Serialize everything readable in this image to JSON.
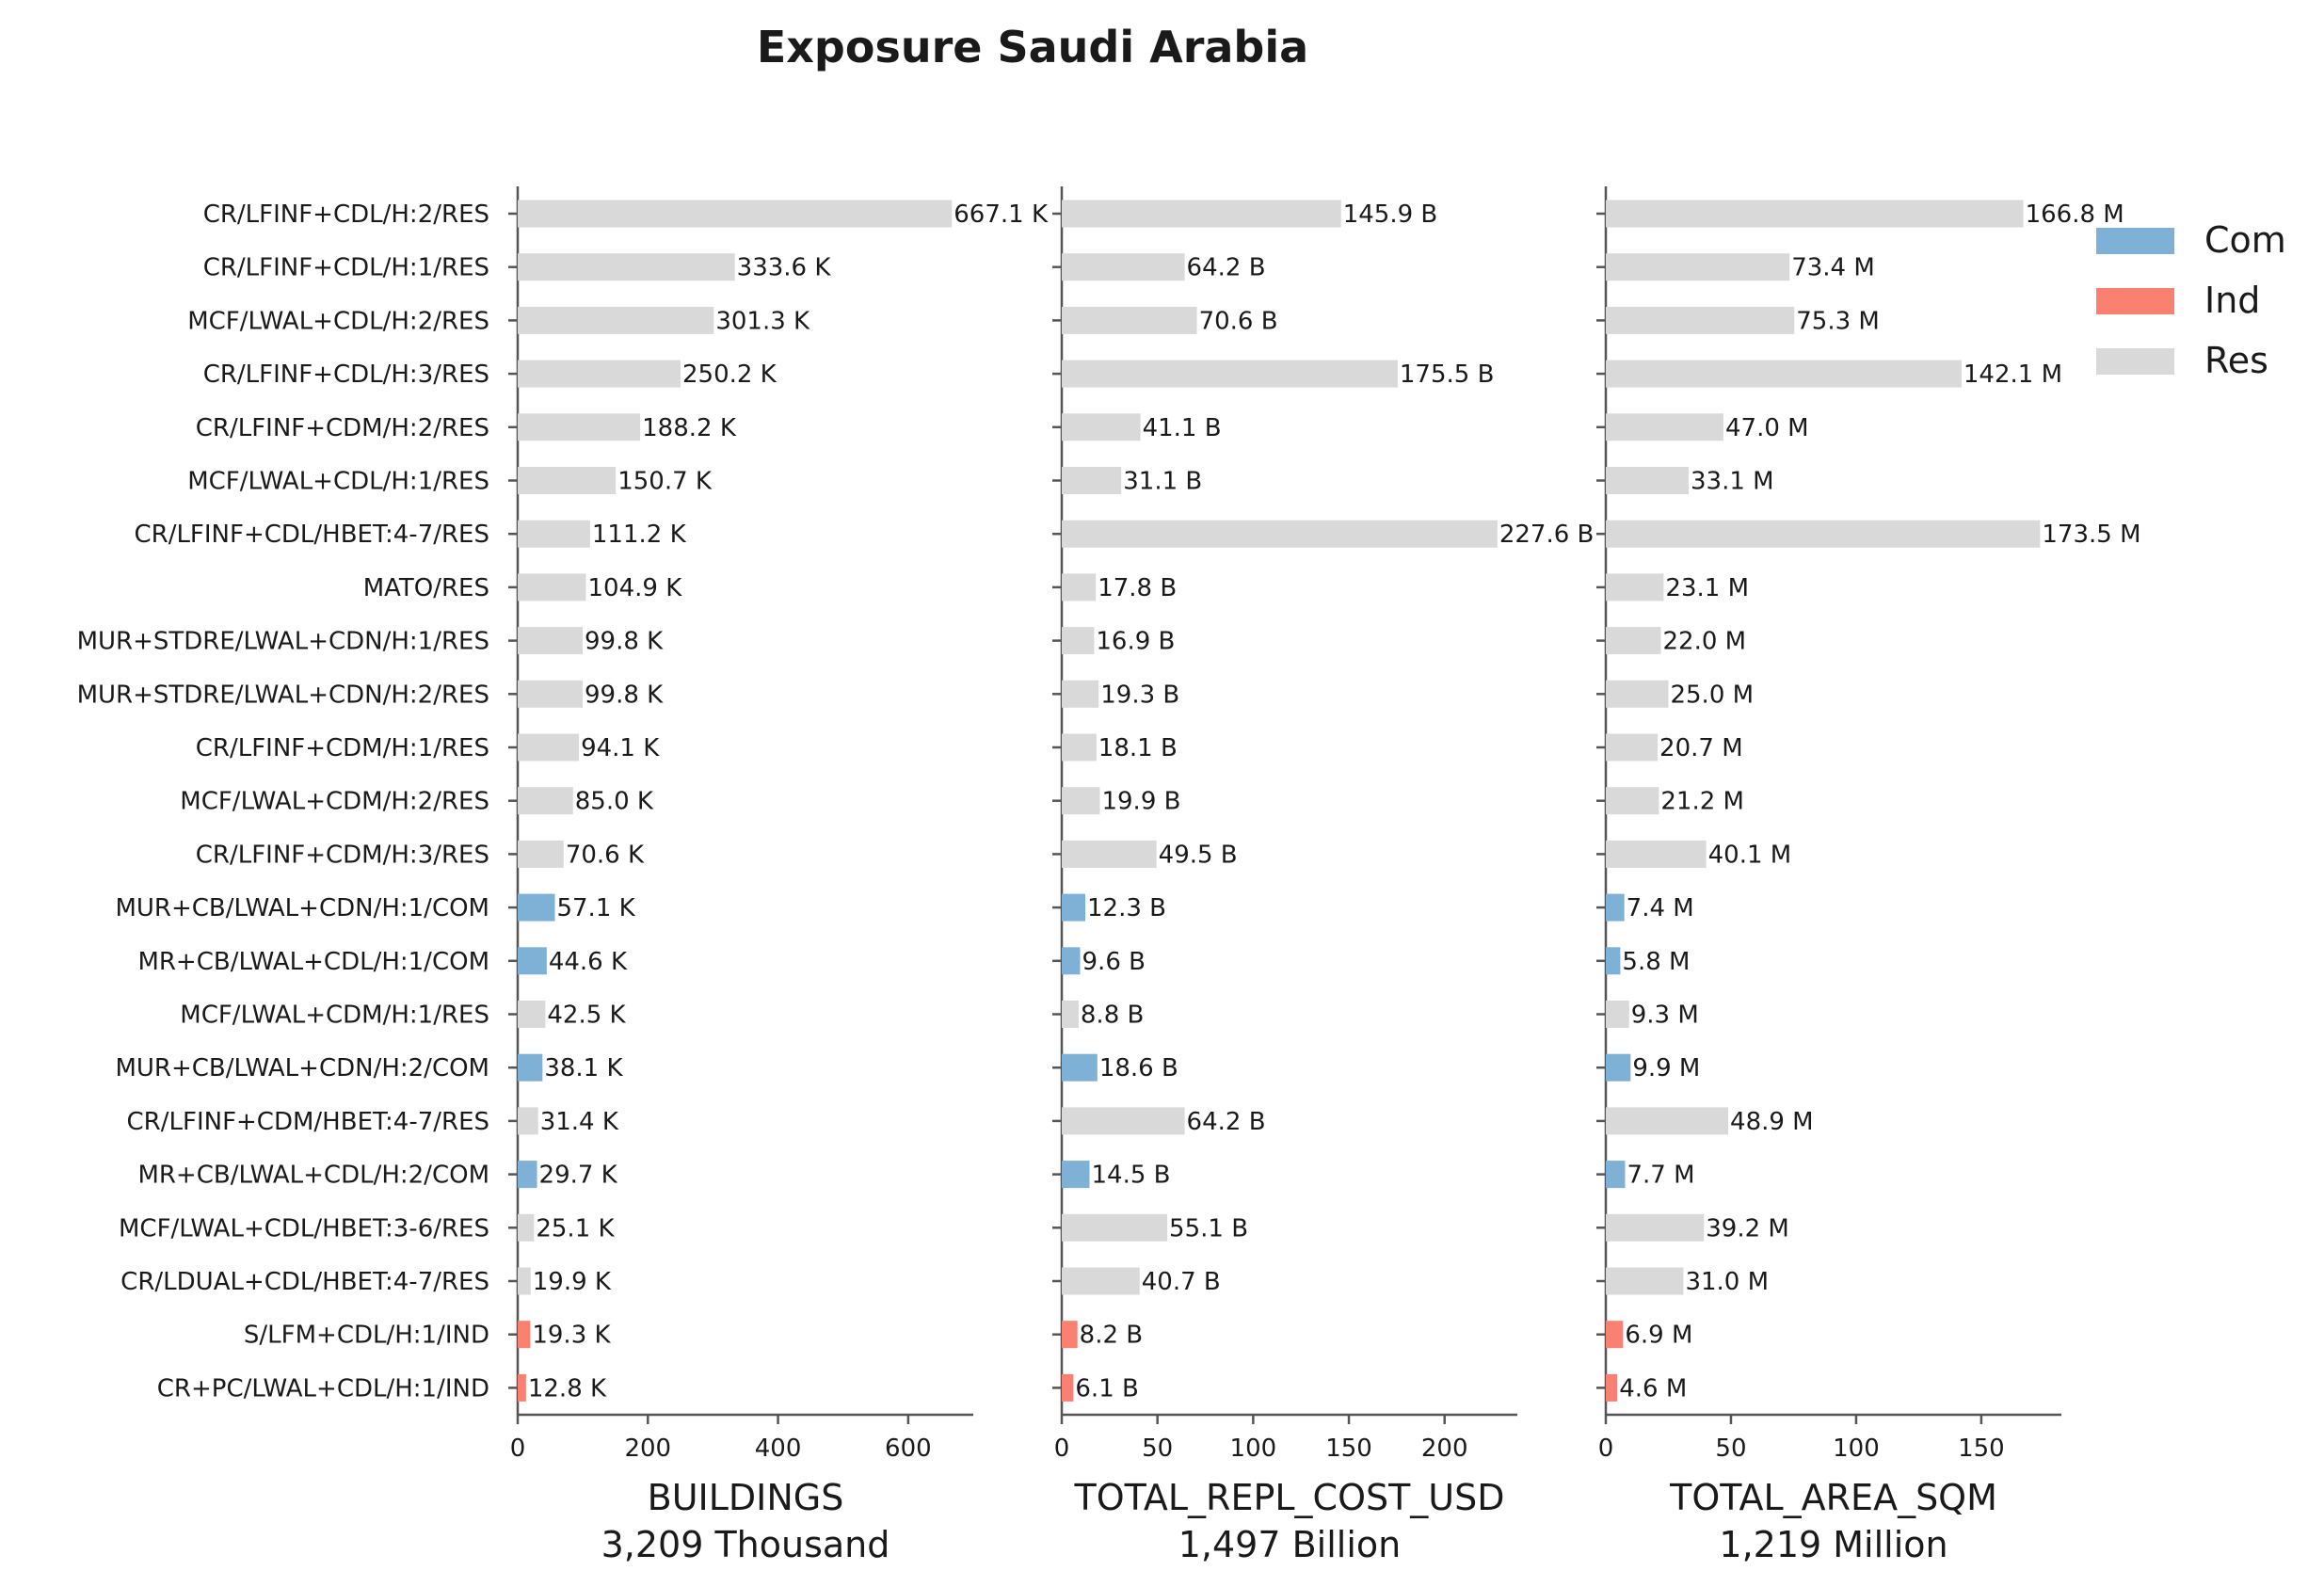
{
  "title": "Exposure Saudi Arabia",
  "colors": {
    "Com": "#7fb0d6",
    "Ind": "#fa8072",
    "Res": "#d9d9d9"
  },
  "legend": {
    "placement": "top-right",
    "entries": [
      "Com",
      "Ind",
      "Res"
    ]
  },
  "chart_data": [
    {
      "type": "bar",
      "orientation": "horizontal",
      "title": "",
      "xlabel": "BUILDINGS",
      "subtitle": "3,209 Thousand",
      "xlim": [
        0,
        700
      ],
      "xticks": [
        0,
        200,
        400,
        600
      ],
      "categories": [
        "CR/LFINF+CDL/H:2/RES",
        "CR/LFINF+CDL/H:1/RES",
        "MCF/LWAL+CDL/H:2/RES",
        "CR/LFINF+CDL/H:3/RES",
        "CR/LFINF+CDM/H:2/RES",
        "MCF/LWAL+CDL/H:1/RES",
        "CR/LFINF+CDL/HBET:4-7/RES",
        "MATO/RES",
        "MUR+STDRE/LWAL+CDN/H:1/RES",
        "MUR+STDRE/LWAL+CDN/H:2/RES",
        "CR/LFINF+CDM/H:1/RES",
        "MCF/LWAL+CDM/H:2/RES",
        "CR/LFINF+CDM/H:3/RES",
        "MUR+CB/LWAL+CDN/H:1/COM",
        "MR+CB/LWAL+CDL/H:1/COM",
        "MCF/LWAL+CDM/H:1/RES",
        "MUR+CB/LWAL+CDN/H:2/COM",
        "CR/LFINF+CDM/HBET:4-7/RES",
        "MR+CB/LWAL+CDL/H:2/COM",
        "MCF/LWAL+CDL/HBET:3-6/RES",
        "CR/LDUAL+CDL/HBET:4-7/RES",
        "S/LFM+CDL/H:1/IND",
        "CR+PC/LWAL+CDL/H:1/IND"
      ],
      "groups": [
        "Res",
        "Res",
        "Res",
        "Res",
        "Res",
        "Res",
        "Res",
        "Res",
        "Res",
        "Res",
        "Res",
        "Res",
        "Res",
        "Com",
        "Com",
        "Res",
        "Com",
        "Res",
        "Com",
        "Res",
        "Res",
        "Ind",
        "Ind"
      ],
      "values": [
        667.1,
        333.6,
        301.3,
        250.2,
        188.2,
        150.7,
        111.2,
        104.9,
        99.8,
        99.8,
        94.1,
        85.0,
        70.6,
        57.1,
        44.6,
        42.5,
        38.1,
        31.4,
        29.7,
        25.1,
        19.9,
        19.3,
        12.8
      ],
      "labels": [
        "667.1 K",
        "333.6 K",
        "301.3 K",
        "250.2 K",
        "188.2 K",
        "150.7 K",
        "111.2 K",
        "104.9 K",
        "99.8 K",
        "99.8 K",
        "94.1 K",
        "85.0 K",
        "70.6 K",
        "57.1 K",
        "44.6 K",
        "42.5 K",
        "38.1 K",
        "31.4 K",
        "29.7 K",
        "25.1 K",
        "19.9 K",
        "19.3 K",
        "12.8 K"
      ]
    },
    {
      "type": "bar",
      "orientation": "horizontal",
      "title": "",
      "xlabel": "TOTAL_REPL_COST_USD",
      "subtitle": "1,497 Billion",
      "xlim": [
        0,
        238
      ],
      "xticks": [
        0,
        50,
        100,
        150,
        200
      ],
      "values": [
        145.9,
        64.2,
        70.6,
        175.5,
        41.1,
        31.1,
        227.6,
        17.8,
        16.9,
        19.3,
        18.1,
        19.9,
        49.5,
        12.3,
        9.6,
        8.8,
        18.6,
        64.2,
        14.5,
        55.1,
        40.7,
        8.2,
        6.1
      ],
      "labels": [
        "145.9 B",
        "64.2 B",
        "70.6 B",
        "175.5 B",
        "41.1 B",
        "31.1 B",
        "227.6 B",
        "17.8 B",
        "16.9 B",
        "19.3 B",
        "18.1 B",
        "19.9 B",
        "49.5 B",
        "12.3 B",
        "9.6 B",
        "8.8 B",
        "18.6 B",
        "64.2 B",
        "14.5 B",
        "55.1 B",
        "40.7 B",
        "8.2 B",
        "6.1 B"
      ]
    },
    {
      "type": "bar",
      "orientation": "horizontal",
      "title": "",
      "xlabel": "TOTAL_AREA_SQM",
      "subtitle": "1,219 Million",
      "xlim": [
        0,
        182
      ],
      "xticks": [
        0,
        50,
        100,
        150
      ],
      "values": [
        166.8,
        73.4,
        75.3,
        142.1,
        47.0,
        33.1,
        173.5,
        23.1,
        22.0,
        25.0,
        20.7,
        21.2,
        40.1,
        7.4,
        5.8,
        9.3,
        9.9,
        48.9,
        7.7,
        39.2,
        31.0,
        6.9,
        4.6
      ],
      "labels": [
        "166.8 M",
        "73.4 M",
        "75.3 M",
        "142.1 M",
        "47.0 M",
        "33.1 M",
        "173.5 M",
        "23.1 M",
        "22.0 M",
        "25.0 M",
        "20.7 M",
        "21.2 M",
        "40.1 M",
        "7.4 M",
        "5.8 M",
        "9.3 M",
        "9.9 M",
        "48.9 M",
        "7.7 M",
        "39.2 M",
        "31.0 M",
        "6.9 M",
        "4.6 M"
      ]
    }
  ]
}
